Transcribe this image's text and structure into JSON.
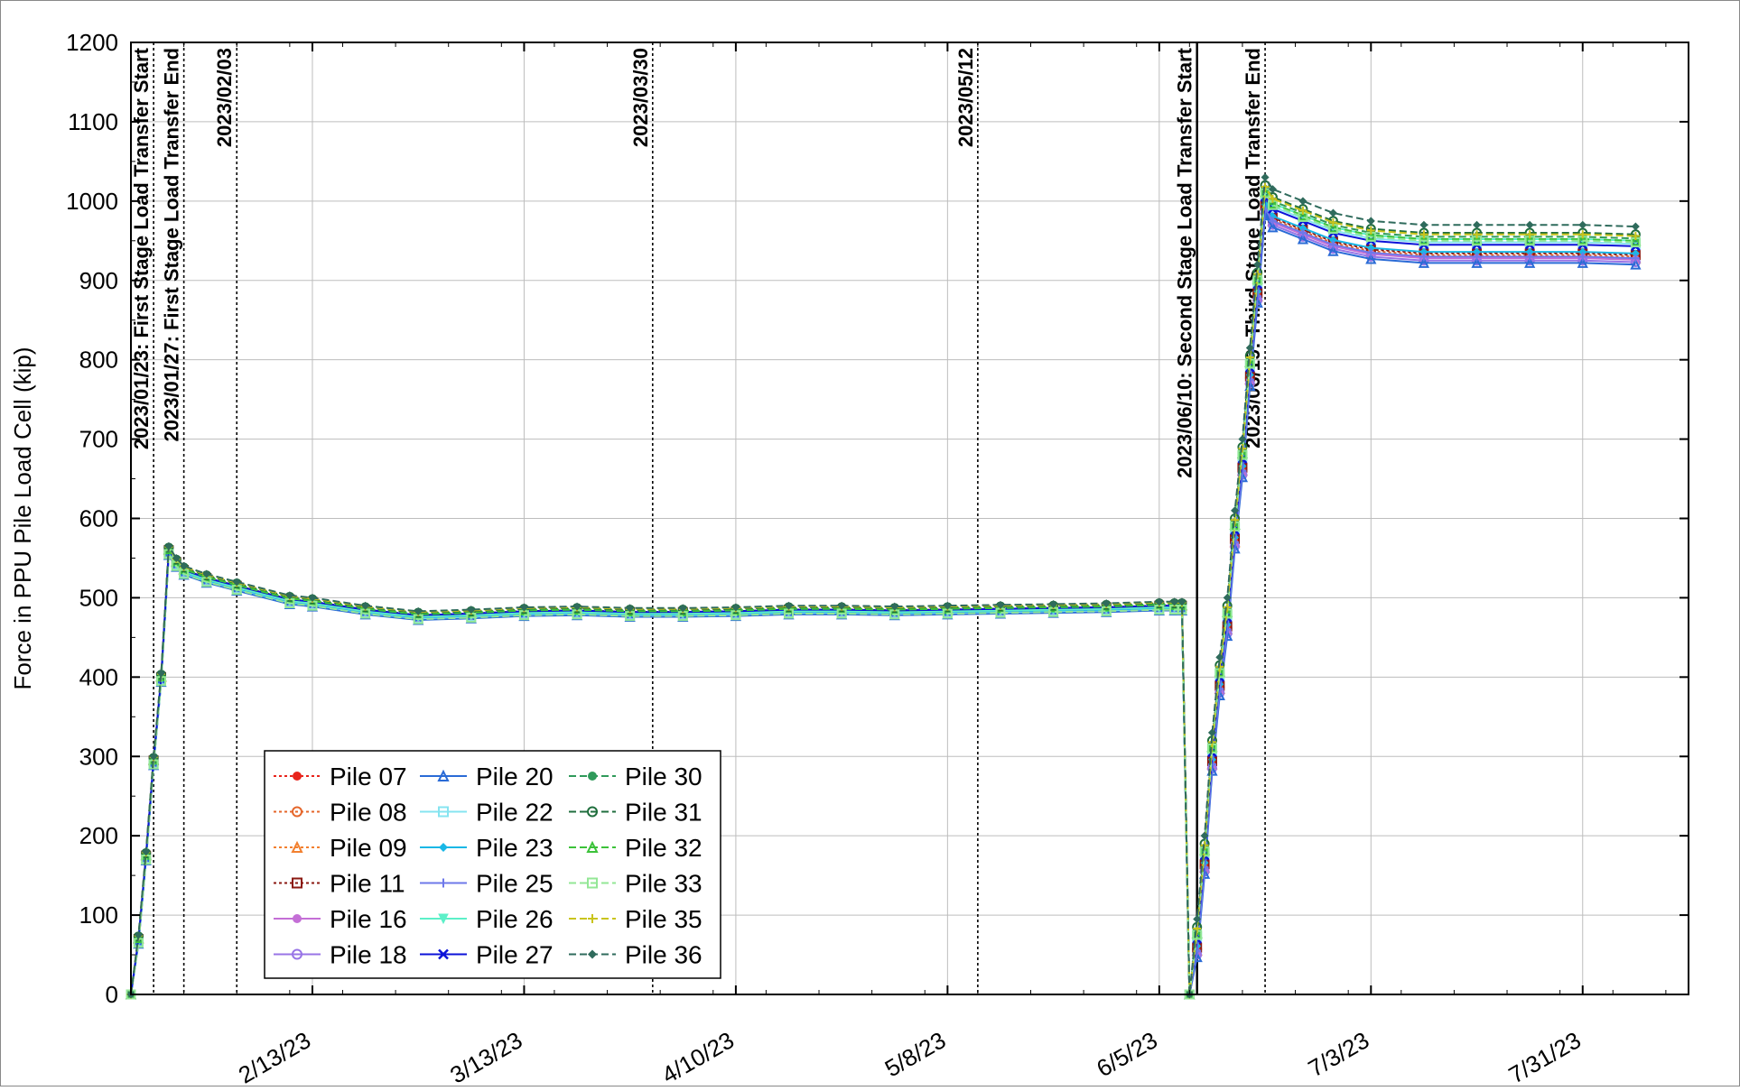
{
  "chart_data": {
    "type": "line",
    "title": "",
    "ylabel": "Force in PPU Pile Load Cell (kip)",
    "xlabel": "",
    "xlim": [
      "2023-01-20",
      "2023-08-14"
    ],
    "ylim": [
      0,
      1200
    ],
    "grid": true,
    "x_ticks": [
      {
        "date": "2023-02-13",
        "label": "2/13/23"
      },
      {
        "date": "2023-03-13",
        "label": "3/13/23"
      },
      {
        "date": "2023-04-10",
        "label": "4/10/23"
      },
      {
        "date": "2023-05-08",
        "label": "5/8/23"
      },
      {
        "date": "2023-06-05",
        "label": "6/5/23"
      },
      {
        "date": "2023-07-03",
        "label": "7/3/23"
      },
      {
        "date": "2023-07-31",
        "label": "7/31/23"
      }
    ],
    "y_ticks": [
      0,
      100,
      200,
      300,
      400,
      500,
      600,
      700,
      800,
      900,
      1000,
      1100,
      1200
    ],
    "annotations": [
      {
        "date": "2023-01-23",
        "text": "2023/01/23: First Stage Load Transfer Start"
      },
      {
        "date": "2023-01-27",
        "text": "2023/01/27: First Stage Load Transfer End"
      },
      {
        "date": "2023-02-03",
        "text": "2023/02/03"
      },
      {
        "date": "2023-03-30",
        "text": "2023/03/30"
      },
      {
        "date": "2023-05-12",
        "text": "2023/05/12"
      },
      {
        "date": "2023-06-10",
        "text": "2023/06/10: Second Stage Load Transfer Start"
      },
      {
        "date": "2023-06-19",
        "text": "2023/06/19: Third Stage Load Transfer End"
      }
    ],
    "legend_position": "bottom-left",
    "series": [
      {
        "name": "Pile 07",
        "color": "#e8241c",
        "dash": "3,3",
        "marker": "dot"
      },
      {
        "name": "Pile 08",
        "color": "#e5662a",
        "dash": "3,3",
        "marker": "ring"
      },
      {
        "name": "Pile 09",
        "color": "#f2802f",
        "dash": "3,3",
        "marker": "triangle"
      },
      {
        "name": "Pile 11",
        "color": "#8b1a12",
        "dash": "3,3",
        "marker": "square"
      },
      {
        "name": "Pile 16",
        "color": "#c46fd6",
        "dash": "",
        "marker": "dot"
      },
      {
        "name": "Pile 18",
        "color": "#9874e6",
        "dash": "",
        "marker": "ring"
      },
      {
        "name": "Pile 20",
        "color": "#2a6bd6",
        "dash": "",
        "marker": "triangle"
      },
      {
        "name": "Pile 22",
        "color": "#86e4f0",
        "dash": "",
        "marker": "square"
      },
      {
        "name": "Pile 23",
        "color": "#19b7e6",
        "dash": "",
        "marker": "diamond"
      },
      {
        "name": "Pile 25",
        "color": "#6e78ea",
        "dash": "",
        "marker": "plus"
      },
      {
        "name": "Pile 26",
        "color": "#5cf0c8",
        "dash": "",
        "marker": "triangle-down"
      },
      {
        "name": "Pile 27",
        "color": "#0b12d8",
        "dash": "",
        "marker": "cross"
      },
      {
        "name": "Pile 30",
        "color": "#2f9a5a",
        "dash": "8,4",
        "marker": "dot"
      },
      {
        "name": "Pile 31",
        "color": "#1f6e3d",
        "dash": "8,4",
        "marker": "ring"
      },
      {
        "name": "Pile 32",
        "color": "#3cc23a",
        "dash": "8,4",
        "marker": "triangle"
      },
      {
        "name": "Pile 33",
        "color": "#93e796",
        "dash": "8,4",
        "marker": "square"
      },
      {
        "name": "Pile 35",
        "color": "#c9c41c",
        "dash": "8,4",
        "marker": "plus"
      },
      {
        "name": "Pile 36",
        "color": "#2f6b5c",
        "dash": "8,4",
        "marker": "diamond"
      }
    ],
    "x": [
      "2023-01-20",
      "2023-01-21",
      "2023-01-22",
      "2023-01-23",
      "2023-01-24",
      "2023-01-25",
      "2023-01-26",
      "2023-01-27",
      "2023-01-30",
      "2023-02-03",
      "2023-02-10",
      "2023-02-13",
      "2023-02-20",
      "2023-02-27",
      "2023-03-06",
      "2023-03-13",
      "2023-03-20",
      "2023-03-27",
      "2023-04-03",
      "2023-04-10",
      "2023-04-17",
      "2023-04-24",
      "2023-05-01",
      "2023-05-08",
      "2023-05-15",
      "2023-05-22",
      "2023-05-29",
      "2023-06-05",
      "2023-06-07",
      "2023-06-08",
      "2023-06-09",
      "2023-06-10",
      "2023-06-11",
      "2023-06-12",
      "2023-06-13",
      "2023-06-14",
      "2023-06-15",
      "2023-06-16",
      "2023-06-17",
      "2023-06-18",
      "2023-06-19",
      "2023-06-20",
      "2023-06-24",
      "2023-06-28",
      "2023-07-03",
      "2023-07-10",
      "2023-07-17",
      "2023-07-24",
      "2023-07-31",
      "2023-08-07"
    ],
    "base_values": [
      0,
      70,
      175,
      295,
      400,
      560,
      545,
      535,
      525,
      515,
      498,
      495,
      485,
      478,
      480,
      483,
      484,
      482,
      482,
      483,
      485,
      485,
      484,
      485,
      486,
      487,
      488,
      490,
      490,
      490,
      0,
      65,
      170,
      300,
      395,
      470,
      580,
      670,
      785,
      890,
      1000,
      985,
      970,
      955,
      945,
      940,
      940,
      940,
      940,
      938
    ],
    "series_offsets": [
      {
        "before": 0,
        "after": -5
      },
      {
        "before": 0,
        "after": -8
      },
      {
        "before": 0,
        "after": -10
      },
      {
        "before": 0,
        "after": -6
      },
      {
        "before": -4,
        "after": -12
      },
      {
        "before": -5,
        "after": -15
      },
      {
        "before": -6,
        "after": -18
      },
      {
        "before": -4,
        "after": 8
      },
      {
        "before": -3,
        "after": -4
      },
      {
        "before": -2,
        "after": -10
      },
      {
        "before": -2,
        "after": 12
      },
      {
        "before": 0,
        "after": 5
      },
      {
        "before": 2,
        "after": 15
      },
      {
        "before": 3,
        "after": 20
      },
      {
        "before": 1,
        "after": 12
      },
      {
        "before": -5,
        "after": 10
      },
      {
        "before": 4,
        "after": 18
      },
      {
        "before": 5,
        "after": 30
      }
    ]
  }
}
